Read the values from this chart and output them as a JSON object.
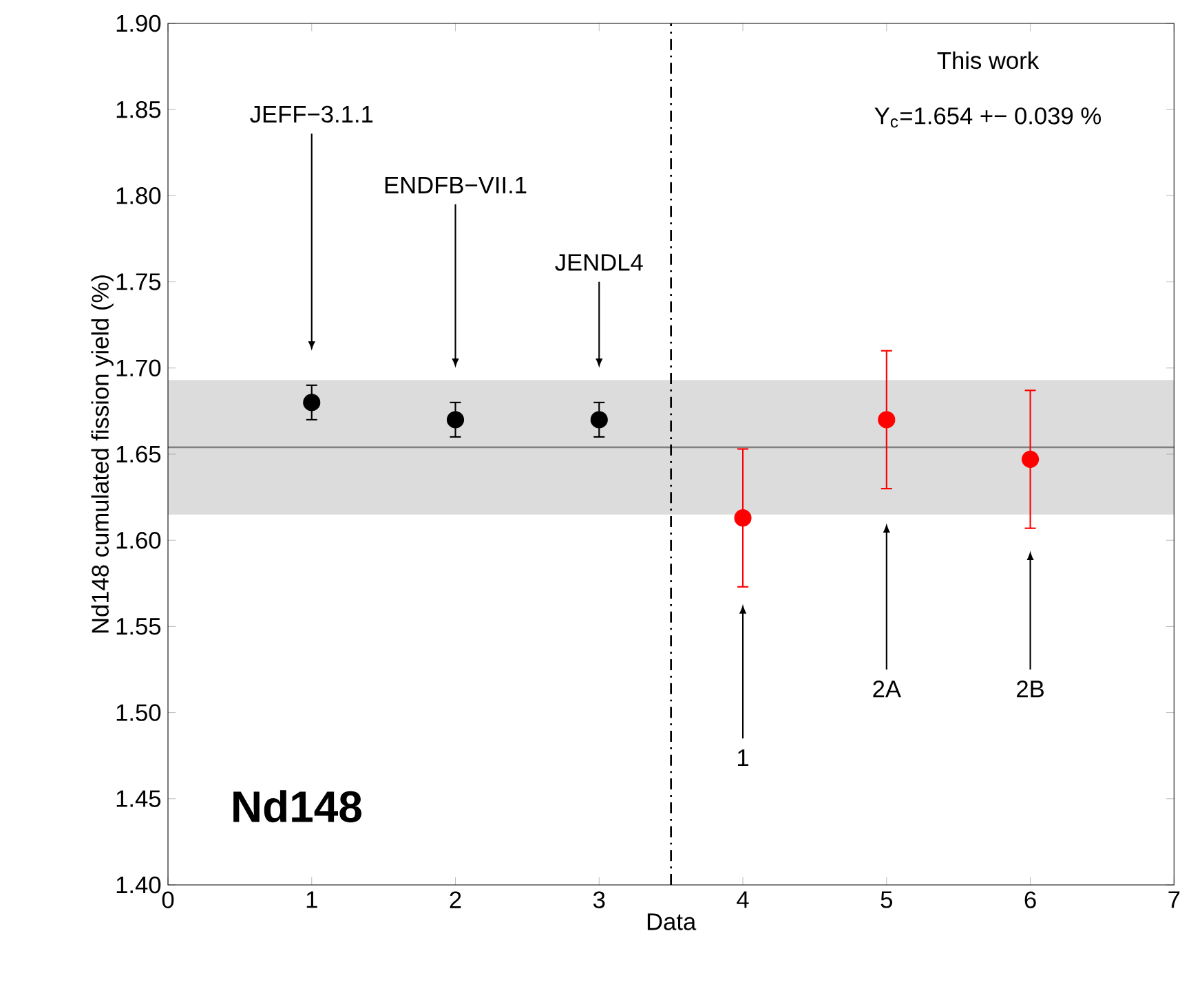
{
  "chart_data": {
    "type": "scatter",
    "xlabel": "Data",
    "ylabel": "Nd148 cumulated fission yield (%)",
    "xlim": [
      0,
      7
    ],
    "xticks": [
      0,
      1,
      2,
      3,
      4,
      5,
      6,
      7
    ],
    "ylim": [
      1.4,
      1.9
    ],
    "yticks": [
      {
        "value": 1.4,
        "label": "1.40"
      },
      {
        "value": 1.45,
        "label": "1.45"
      },
      {
        "value": 1.5,
        "label": "1.50"
      },
      {
        "value": 1.55,
        "label": "1.55"
      },
      {
        "value": 1.6,
        "label": "1.60"
      },
      {
        "value": 1.65,
        "label": "1.65"
      },
      {
        "value": 1.7,
        "label": "1.70"
      },
      {
        "value": 1.75,
        "label": "1.75"
      },
      {
        "value": 1.8,
        "label": "1.80"
      },
      {
        "value": 1.85,
        "label": "1.85"
      },
      {
        "value": 1.9,
        "label": "1.90"
      }
    ],
    "marker": "circle",
    "grid": false,
    "series": [
      {
        "color": "#000000",
        "x": [
          1,
          2,
          3
        ],
        "values": [
          1.68,
          1.67,
          1.67
        ],
        "errors": [
          0.01,
          0.01,
          0.01
        ]
      },
      {
        "color": "#ff0000",
        "x": [
          4,
          5,
          6
        ],
        "values": [
          1.613,
          1.67,
          1.647
        ],
        "errors": [
          0.04,
          0.04,
          0.04
        ]
      }
    ],
    "ref_lines": [
      {
        "axis": "y",
        "value": 1.654,
        "color": "#808080",
        "line_style": "solid"
      },
      {
        "axis": "x",
        "value": 3.5,
        "color": "#000000",
        "line_style": "dashdot"
      }
    ],
    "bands": [
      {
        "axis": "y",
        "from": 1.615,
        "to": 1.693,
        "color": "#dcdcdc"
      }
    ],
    "annotations": [
      "This work",
      "Y$_{c}$=1.654 +− 0.039 %",
      "Nd148",
      "JEFF−3.1.1",
      "ENDFB−VII.1",
      "JENDL4",
      "1",
      "2A",
      "2B"
    ]
  }
}
